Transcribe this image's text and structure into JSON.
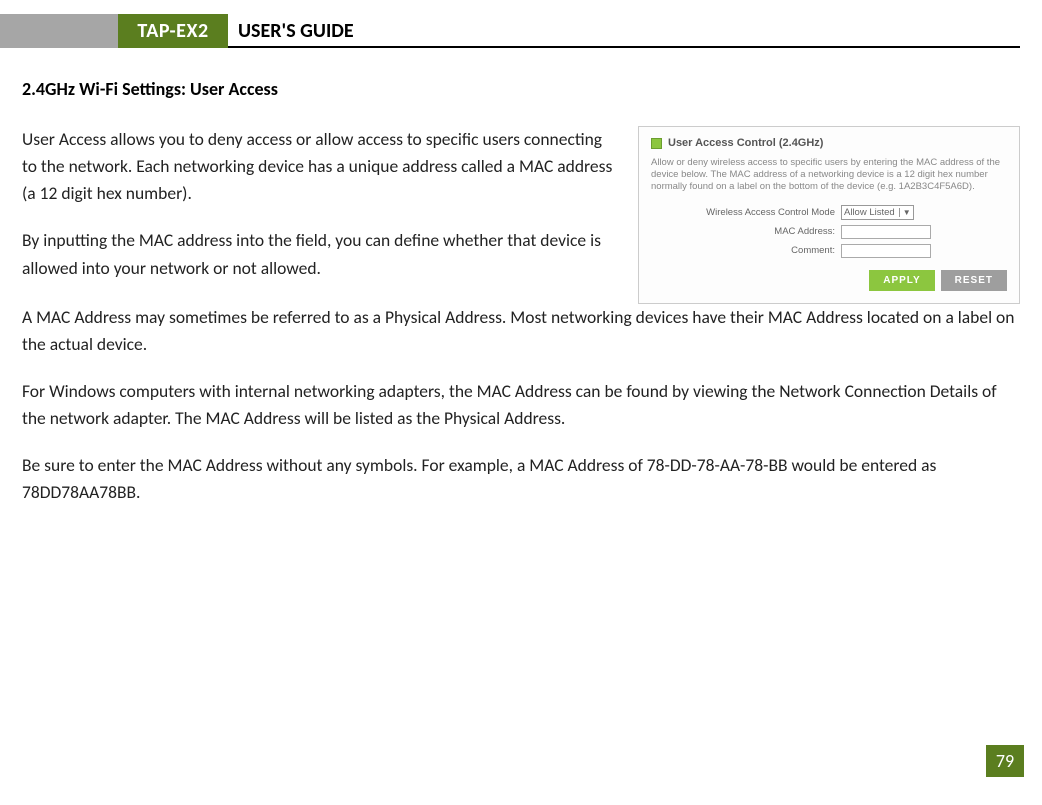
{
  "header": {
    "product": "TAP-EX2",
    "title": "USER'S GUIDE"
  },
  "section_heading": "2.4GHz Wi-Fi Settings: User Access",
  "paragraphs": {
    "p1": "User Access allows you to deny access or allow access to specific users connecting to the network. Each networking device has a unique address called a MAC address (a 12 digit hex number).",
    "p2": "By inputting the MAC address into the field, you can define whether that device is allowed into your network or not allowed.",
    "p3": "A MAC Address may sometimes be referred to as a Physical Address. Most networking devices have their MAC Address located on a label on the actual device.",
    "p4": "For Windows computers with internal networking adapters, the MAC Address can be found by viewing the Network Connection Details of the network adapter. The MAC Address will be listed as the Physical Address.",
    "p5": "Be sure to enter the MAC Address without any symbols. For example, a MAC Address of 78-DD-78-AA-78-BB would be entered as 78DD78AA78BB."
  },
  "screenshot": {
    "title": "User Access Control (2.4GHz)",
    "description": "Allow or deny wireless access to specific users by entering the MAC address of the device below. The MAC address of a networking device is a 12 digit hex number normally found on a label on the bottom of the device (e.g. 1A2B3C4F5A6D).",
    "form": {
      "mode_label": "Wireless Access Control Mode",
      "mode_value": "Allow Listed",
      "mac_label": "MAC Address:",
      "comment_label": "Comment:"
    },
    "buttons": {
      "apply": "APPLY",
      "reset": "RESET"
    }
  },
  "page_number": "79",
  "colors": {
    "brand_green": "#5b7e1f",
    "apply_green": "#8cc63f",
    "reset_gray": "#9e9e9e",
    "header_gray": "#a6a6a6"
  }
}
